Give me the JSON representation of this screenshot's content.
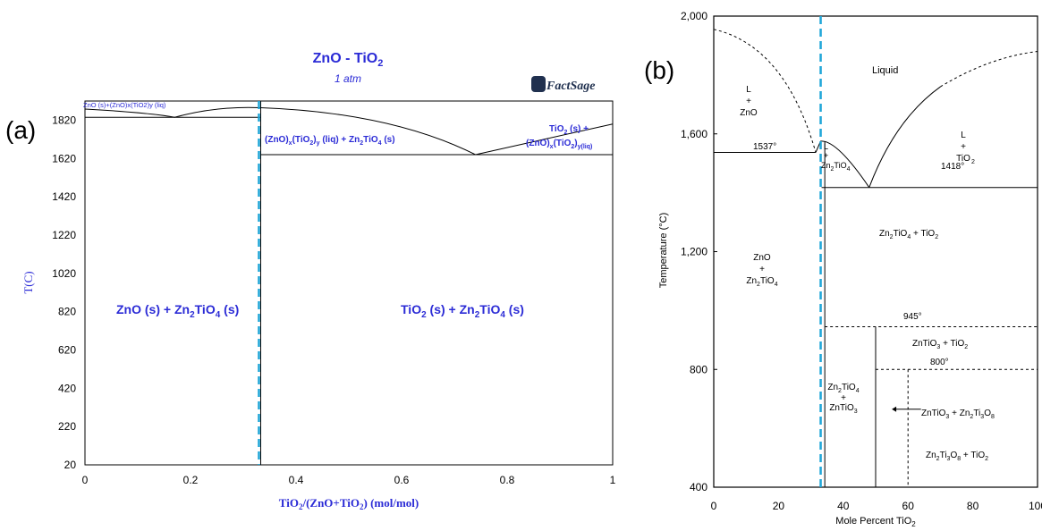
{
  "panel_a": {
    "panel_label": "(a)",
    "title": "ZnO - TiO",
    "title_sub": "2",
    "subtitle": "1 atm",
    "logo_text": "FactSage",
    "ylabel": "T(C)",
    "xlabel": {
      "p1": "TiO",
      "p1sub": "2",
      "p2": "/(ZnO+TiO",
      "p2sub": "2",
      "p3": ") (mol/mol)"
    },
    "region_labels": {
      "top_left": "ZnO (s)+(ZnO)x(TiO2)y (liq)",
      "mid": {
        "a": "(ZnO)",
        "as": "x",
        "b": "(TiO",
        "bs": "2",
        "c": ")",
        "cs": "y",
        "d": " (liq) + Zn",
        "ds": "2",
        "e": "TiO",
        "es": "4",
        "f": " (s)"
      },
      "right_top": {
        "a": "TiO",
        "as": "2",
        "b": " (s) +"
      },
      "right_bot": {
        "a": "(ZnO)",
        "as": "x",
        "b": "(TiO",
        "bs": "2",
        "c": ")",
        "cs": "y(liq)"
      },
      "left_main": {
        "a": "ZnO (s) + Zn",
        "as": "2",
        "b": "TiO",
        "bs": "4",
        "c": " (s)"
      },
      "right_main": {
        "a": "TiO",
        "as": "2",
        "b": " (s) + Zn",
        "bs": "2",
        "c": "TiO",
        "cs": "4",
        "d": " (s)"
      }
    },
    "chart_data": {
      "type": "phase-diagram",
      "xlim": [
        0,
        1
      ],
      "ylim": [
        20,
        1920
      ],
      "xticks": [
        "0",
        "0.2",
        "0.4",
        "0.6",
        "0.8",
        "1"
      ],
      "yticks": [
        "20",
        "220",
        "420",
        "620",
        "820",
        "1020",
        "1220",
        "1420",
        "1620",
        "1820"
      ],
      "eutectic_left": {
        "x": 0.17,
        "T": 1835
      },
      "eutectic_right": {
        "x": 0.74,
        "T": 1640
      },
      "compound_line_x": 0.333,
      "solidus_left_T": 1835,
      "solidus_right_T": 1640,
      "liquidus_points": [
        [
          0,
          1878
        ],
        [
          0.17,
          1835
        ],
        [
          0.333,
          1885
        ],
        [
          0.74,
          1640
        ],
        [
          1,
          1800
        ]
      ]
    }
  },
  "panel_b": {
    "panel_label": "(b)",
    "ylabel": "Temperature (°C)",
    "xlabel": {
      "a": "Mole Percent TiO",
      "as": "2"
    },
    "labels": {
      "liquid": "Liquid",
      "l_zno": [
        "L",
        "+",
        "ZnO"
      ],
      "l_tio2": [
        "L",
        "+",
        "TiO"
      ],
      "l_zn2": [
        "L",
        "+",
        "Zn"
      ],
      "t1537": "1537°",
      "t1418": "1418°",
      "t945": "945°",
      "t800": "800°",
      "zno_zn2": [
        "ZnO",
        "+",
        "Zn"
      ],
      "zn2_tio2": "Zn",
      "znt_tio2": "ZnTiO",
      "zn2_znt": [
        "Zn",
        "+",
        "ZnTiO"
      ],
      "arrow_lbl": "ZnTiO",
      "zn2ti3o8_tio2": "Zn"
    },
    "chart_data": {
      "type": "phase-diagram",
      "xlim": [
        0,
        100
      ],
      "ylim": [
        400,
        2000
      ],
      "xticks": [
        "0",
        "20",
        "40",
        "60",
        "80",
        "100"
      ],
      "yticks": [
        "400",
        "800",
        "1,200",
        "1,600",
        "2,000"
      ],
      "isotherms": [
        1537,
        1418,
        945,
        800
      ],
      "compound_line_x": 33.3
    }
  }
}
